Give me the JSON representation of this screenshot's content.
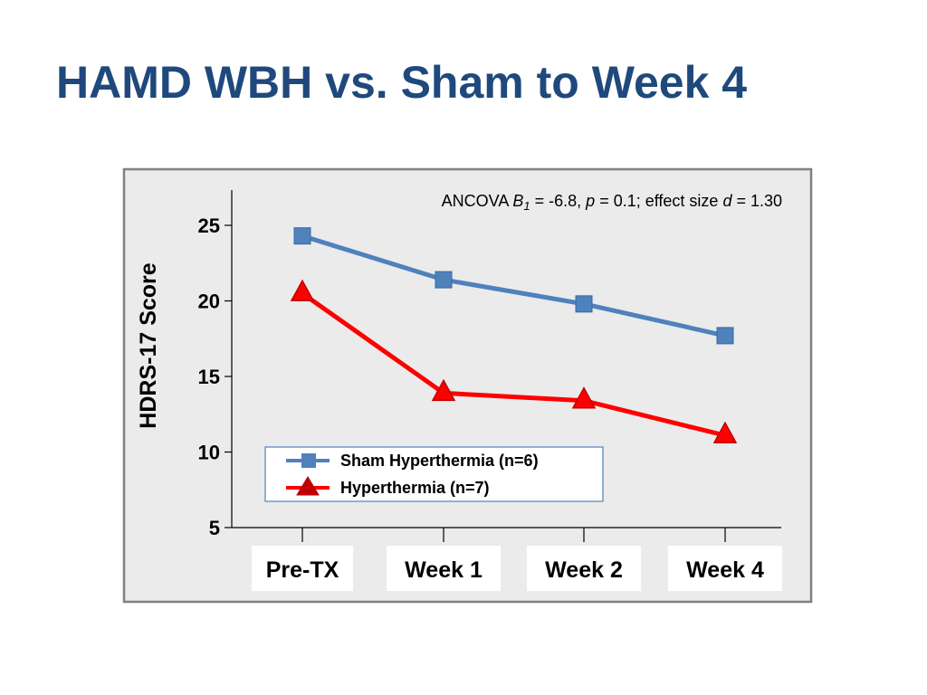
{
  "slide": {
    "title": "HAMD WBH vs. Sham to Week 4"
  },
  "chart_data": {
    "type": "line",
    "categories": [
      "Pre-TX",
      "Week 1",
      "Week 2",
      "Week 4"
    ],
    "ylabel": "HDRS-17 Score",
    "ylim": [
      5,
      27
    ],
    "yticks": [
      5,
      10,
      15,
      20,
      25
    ],
    "grid": false,
    "legend_position": "bottom-left",
    "annotation": {
      "prefix": "ANCOVA ",
      "b_symbol": "B",
      "b_subscript": "1",
      "b_value": " = -6.8, ",
      "p_symbol": "p",
      "p_value": " = 0.1; effect size ",
      "d_symbol": "d",
      "d_value": " = 1.30"
    },
    "series": [
      {
        "name": "Sham Hyperthermia (n=6)",
        "color": "#4f81bd",
        "marker": "square",
        "values": [
          24.3,
          21.4,
          19.8,
          17.7
        ]
      },
      {
        "name": "Hyperthermia (n=7)",
        "color": "#ff0000",
        "marker": "triangle",
        "marker_color": "#c00000",
        "values": [
          20.5,
          13.9,
          13.4,
          11.1
        ]
      }
    ]
  }
}
